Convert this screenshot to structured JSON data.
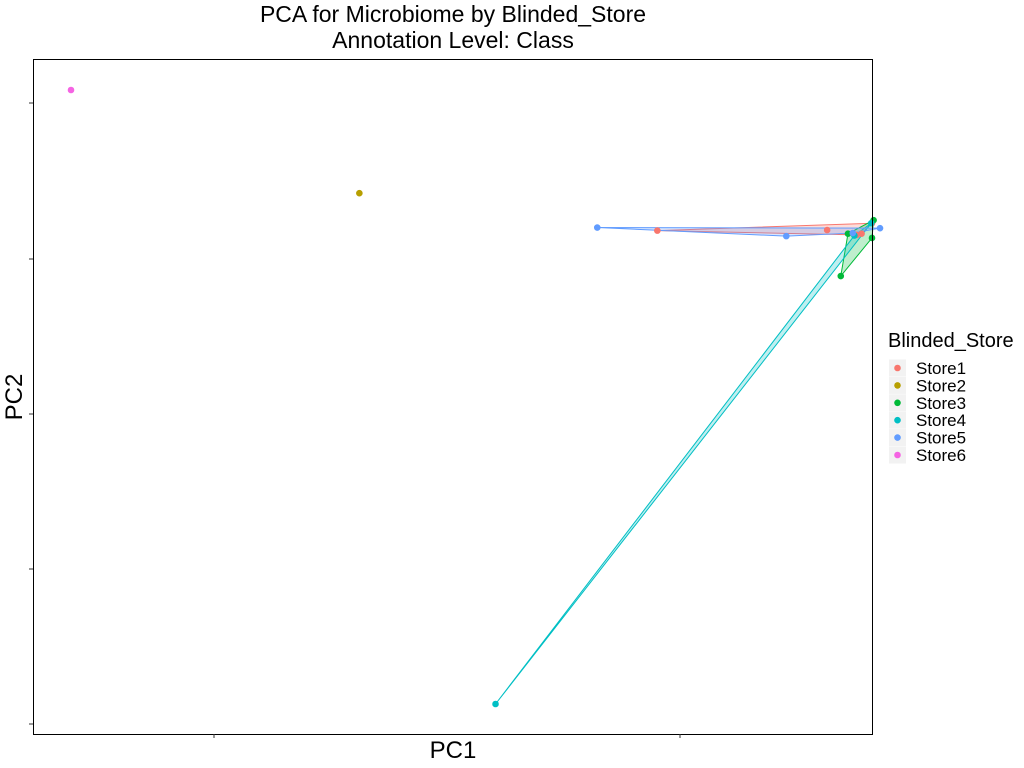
{
  "chart_data": {
    "type": "scatter",
    "title": "PCA for Microbiome by Blinded_Store",
    "subtitle": "Annotation Level: Class",
    "xlabel": "PC1",
    "ylabel": "PC2",
    "xlim": [
      -0.05,
      1.05
    ],
    "ylim": [
      -0.05,
      1.05
    ],
    "grid": false,
    "legend": {
      "title": "Blinded_Store",
      "placement": "right",
      "entries": [
        "Store1",
        "Store2",
        "Store3",
        "Store4",
        "Store5",
        "Store6"
      ]
    },
    "series": [
      {
        "name": "Store1",
        "color": "#F8766D",
        "points": [
          [
            0.732,
            0.771
          ],
          [
            0.987,
            0.766
          ],
          [
            0.944,
            0.772
          ],
          [
            1.0,
            0.783
          ],
          [
            0.981,
            0.764
          ]
        ],
        "hull": [
          [
            0.732,
            0.771
          ],
          [
            0.981,
            0.764
          ],
          [
            0.987,
            0.766
          ],
          [
            1.0,
            0.783
          ]
        ]
      },
      {
        "name": "Store2",
        "color": "#B79F00",
        "points": [
          [
            0.36,
            0.832
          ]
        ],
        "hull": []
      },
      {
        "name": "Store3",
        "color": "#00BA38",
        "points": [
          [
            1.002,
            0.788
          ],
          [
            0.97,
            0.766
          ],
          [
            1.0,
            0.759
          ],
          [
            0.961,
            0.697
          ]
        ],
        "hull": [
          [
            0.961,
            0.697
          ],
          [
            1.0,
            0.759
          ],
          [
            1.002,
            0.788
          ],
          [
            0.97,
            0.766
          ]
        ]
      },
      {
        "name": "Store4",
        "color": "#00BFC4",
        "points": [
          [
            0.53,
            0.0
          ],
          [
            0.978,
            0.763
          ],
          [
            0.999,
            0.783
          ]
        ],
        "hull": [
          [
            0.53,
            0.0
          ],
          [
            0.999,
            0.783
          ],
          [
            0.978,
            0.763
          ]
        ]
      },
      {
        "name": "Store5",
        "color": "#619CFF",
        "points": [
          [
            0.657,
            0.776
          ],
          [
            0.893,
            0.762
          ],
          [
            1.01,
            0.775
          ],
          [
            0.976,
            0.767
          ]
        ],
        "hull": [
          [
            0.657,
            0.776
          ],
          [
            0.893,
            0.762
          ],
          [
            0.976,
            0.767
          ],
          [
            1.01,
            0.775
          ]
        ]
      },
      {
        "name": "Store6",
        "color": "#F564E3",
        "points": [
          [
            0.0,
            1.0
          ]
        ],
        "hull": []
      }
    ]
  }
}
